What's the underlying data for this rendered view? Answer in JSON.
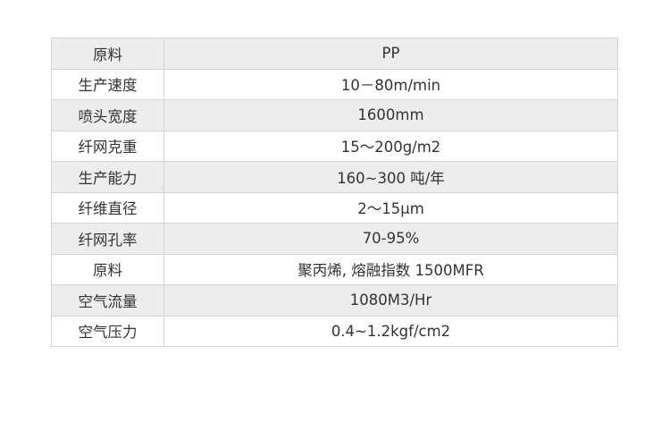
{
  "rows": [
    {
      "label": "原料",
      "value": "PP"
    },
    {
      "label": "生产速度",
      "value": "10－80m/min"
    },
    {
      "label": "喷头宽度",
      "value": "1600mm"
    },
    {
      "label": "纤网克重",
      "value": "15～200g/m2"
    },
    {
      "label": "生产能力",
      "value": "160~300 吨/年"
    },
    {
      "label": "纤维直径",
      "value": "2～15μm"
    },
    {
      "label": "纤网孔率",
      "value": "70-95%"
    },
    {
      "label": "原料",
      "value": "聚丙烯, 熔融指数 1500MFR"
    },
    {
      "label": "空气流量",
      "value": "1080M3/Hr"
    },
    {
      "label": "空气压力",
      "value": "0.4~1.2kgf/cm2"
    }
  ]
}
